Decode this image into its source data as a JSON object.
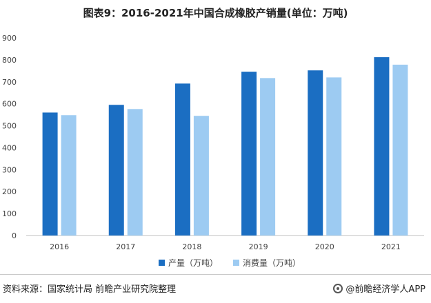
{
  "header": {
    "title": "图表9：2016-2021年中国合成橡胶产销量(单位：万吨)"
  },
  "footer": {
    "source": "资料来源：国家统计局 前瞻产业研究院整理",
    "brand": "@前瞻经济学人APP"
  },
  "colors": {
    "production": "#1B6EC2",
    "consumption": "#9DCBF2",
    "axis": "#bfbfbf",
    "text": "#404040"
  },
  "chart_data": {
    "type": "bar",
    "title": "图表9：2016-2021年中国合成橡胶产销量(单位：万吨)",
    "categories": [
      "2016",
      "2017",
      "2018",
      "2019",
      "2020",
      "2021"
    ],
    "series": [
      {
        "name": "产量（万吨）",
        "values": [
          560,
          595,
          692,
          746,
          752,
          812
        ]
      },
      {
        "name": "消费量（万吨）",
        "values": [
          548,
          576,
          545,
          717,
          720,
          778
        ]
      }
    ],
    "ylim": [
      0,
      900
    ],
    "yticks": [
      0,
      100,
      200,
      300,
      400,
      500,
      600,
      700,
      800,
      900
    ],
    "grid": false,
    "legend_position": "bottom"
  }
}
